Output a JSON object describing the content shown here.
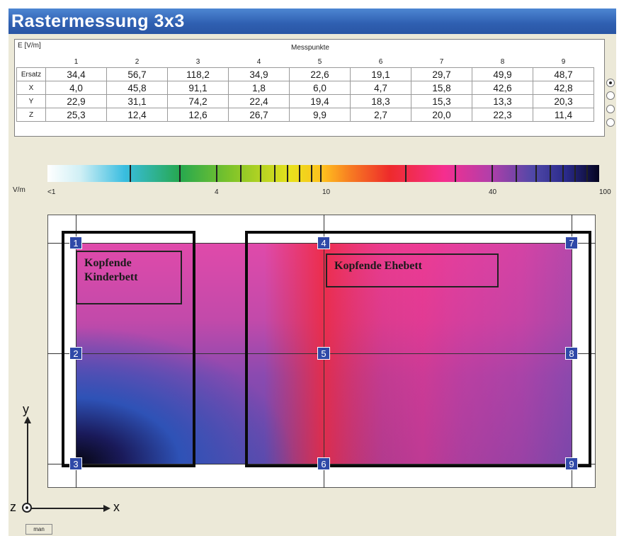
{
  "window": {
    "title": "Rastermessung 3x3"
  },
  "table": {
    "unit_label": "E [V/m]",
    "group_label": "Messpunkte",
    "columns": [
      "1",
      "2",
      "3",
      "4",
      "5",
      "6",
      "7",
      "8",
      "9"
    ],
    "rows": [
      {
        "label": "Ersatz",
        "values": [
          "34,4",
          "56,7",
          "118,2",
          "34,9",
          "22,6",
          "19,1",
          "29,7",
          "49,9",
          "48,7"
        ],
        "selected": true
      },
      {
        "label": "X",
        "values": [
          "4,0",
          "45,8",
          "91,1",
          "1,8",
          "6,0",
          "4,7",
          "15,8",
          "42,6",
          "42,8"
        ],
        "selected": false
      },
      {
        "label": "Y",
        "values": [
          "22,9",
          "31,1",
          "74,2",
          "22,4",
          "19,4",
          "18,3",
          "15,3",
          "13,3",
          "20,3"
        ],
        "selected": false
      },
      {
        "label": "Z",
        "values": [
          "25,3",
          "12,4",
          "12,6",
          "26,7",
          "9,9",
          "2,7",
          "20,0",
          "22,3",
          "11,4"
        ],
        "selected": false
      }
    ]
  },
  "scale": {
    "unit": "V/m",
    "labels": [
      "<1",
      "4",
      "10",
      "40",
      "100"
    ],
    "colors": [
      "#ffffff",
      "#39bde0",
      "#26a84f",
      "#e8e21c",
      "#f77a22",
      "#ee2b2b",
      "#f52e8f",
      "#5048a8",
      "#050520"
    ]
  },
  "plot": {
    "points": [
      "1",
      "4",
      "7",
      "2",
      "5",
      "8",
      "3",
      "6",
      "9"
    ],
    "label_child_bed_line1": "Kopfende",
    "label_child_bed_line2": "Kinderbett",
    "label_double_bed": "Kopfende Ehebett"
  },
  "axes": {
    "y": "y",
    "x": "x",
    "z": "z"
  },
  "footer": {
    "button_label": "man"
  }
}
